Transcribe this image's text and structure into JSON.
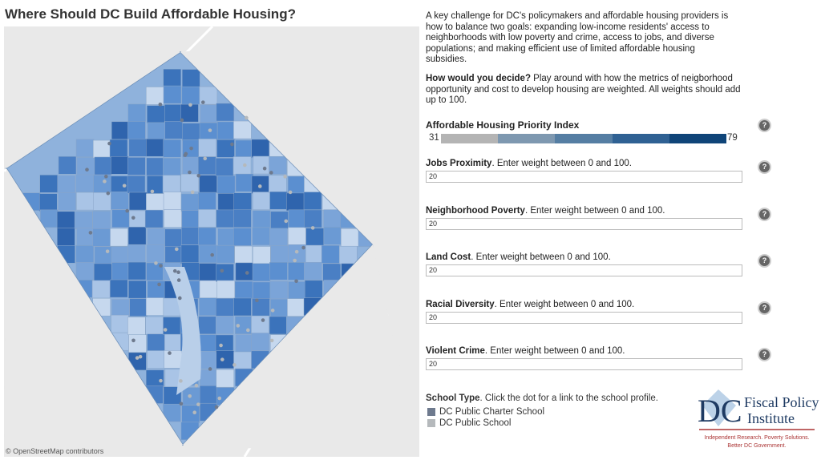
{
  "title": "Where Should DC Build Affordable Housing?",
  "map": {
    "attribution": "© OpenStreetMap contributors"
  },
  "intro": "A key challenge for DC's policymakers and affordable housing providers is how to balance two goals: expanding low-income residents' access to neighborhoods with low poverty and crime, access to jobs, and diverse populations; and making efficient use of limited affordable housing subsidies.",
  "decide": {
    "bold": "How would you decide?",
    "text": " Play around with how the metrics of neigborhood opportunity and cost to develop housing are weighted. All weights should add up to 100."
  },
  "index": {
    "label": "Affordable Housing Priority Index",
    "min": "31",
    "max": "79",
    "colors": [
      "#b4b4b4",
      "#7e98b0",
      "#557ea3",
      "#2f6193",
      "#0f4478"
    ]
  },
  "help_icon": "?",
  "weights": [
    {
      "name": "Jobs Proximity",
      "hint": ". Enter weight between 0 and 100.",
      "value": "20"
    },
    {
      "name": "Neighborhood Poverty",
      "hint": ". Enter weight between 0 and 100.",
      "value": "20"
    },
    {
      "name": "Land Cost",
      "hint": ". Enter weight between 0 and 100.",
      "value": "20"
    },
    {
      "name": "Racial Diversity",
      "hint": ". Enter weight between 0 and 100.",
      "value": "20"
    },
    {
      "name": "Violent Crime",
      "hint": ". Enter weight between 0 and 100.",
      "value": "20"
    }
  ],
  "legend": {
    "title_bold": "School Type",
    "title_text": ". Click the dot for a link to the school profile.",
    "items": [
      {
        "label": "DC Public Charter School",
        "color": "#6e7a8e"
      },
      {
        "label": "DC Public School",
        "color": "#b5b9bc"
      }
    ]
  },
  "logo": {
    "mark": "DC",
    "line1": "Fiscal Policy",
    "line2": "Institute",
    "tagline1": "Independent Research. Poverty Solutions.",
    "tagline2": "Better DC Government."
  }
}
